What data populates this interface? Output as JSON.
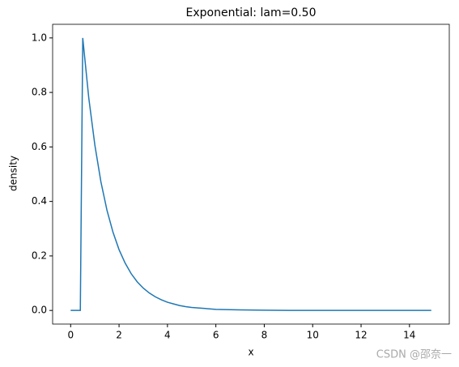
{
  "chart_data": {
    "type": "line",
    "title": "Exponential: lam=0.50",
    "x_label": "x",
    "y_label": "density",
    "x": [
      0,
      0.4,
      0.5,
      0.75,
      1,
      1.25,
      1.5,
      1.75,
      2,
      2.25,
      2.5,
      2.75,
      3,
      3.25,
      3.5,
      3.75,
      4,
      4.25,
      4.5,
      4.75,
      5,
      6,
      7,
      8,
      9,
      10,
      11,
      12,
      13,
      14,
      14.9
    ],
    "series": [
      {
        "name": "density",
        "color": "#1f77b4",
        "values": [
          0,
          0,
          1,
          0.779,
          0.607,
          0.472,
          0.368,
          0.287,
          0.223,
          0.174,
          0.135,
          0.105,
          0.082,
          0.064,
          0.05,
          0.039,
          0.03,
          0.024,
          0.018,
          0.014,
          0.011,
          0.004,
          0.002,
          0.001,
          0,
          0,
          0,
          0,
          0,
          0,
          0
        ]
      }
    ],
    "xlim": [
      -0.745,
      15.645
    ],
    "ylim": [
      -0.05,
      1.05
    ],
    "xticks": [
      0,
      2,
      4,
      6,
      8,
      10,
      12,
      14
    ],
    "yticks": [
      {
        "value": 0,
        "label": "0.0"
      },
      {
        "value": 0.2,
        "label": "0.2"
      },
      {
        "value": 0.4,
        "label": "0.4"
      },
      {
        "value": 0.6,
        "label": "0.6"
      },
      {
        "value": 0.8,
        "label": "0.8"
      },
      {
        "value": 1,
        "label": "1.0"
      }
    ],
    "grid": false
  },
  "watermark": "CSDN @邵奈一"
}
